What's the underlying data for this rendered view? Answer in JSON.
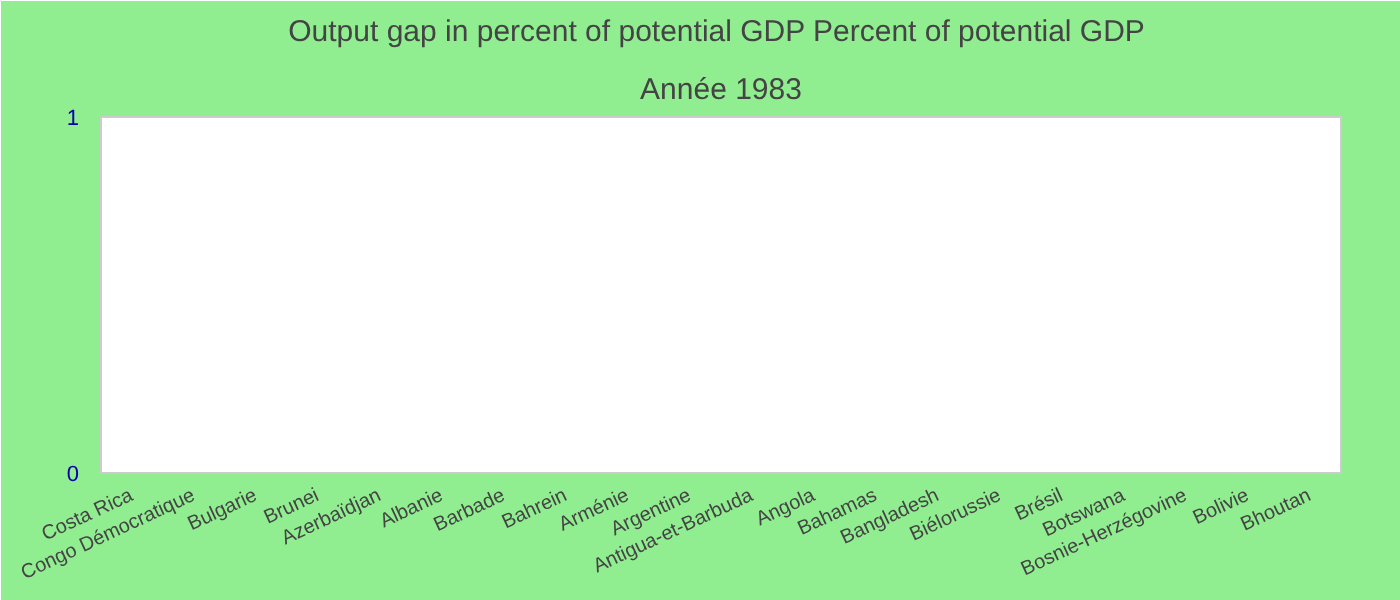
{
  "chart_data": {
    "type": "bar",
    "title": "Output gap in percent of potential GDP  Percent of potential GDP",
    "subtitle": "Année 1983",
    "categories": [
      "Costa Rica",
      "Congo Démocratique",
      "Bulgarie",
      "Brunei",
      "Azerbaïdjan",
      "Albanie",
      "Barbade",
      "Bahrein",
      "Arménie",
      "Argentine",
      "Antigua-et-Barbuda",
      "Angola",
      "Bahamas",
      "Bangladesh",
      "Biélorussie",
      "Brésil",
      "Botswana",
      "Bosnie-Herzégovine",
      "Bolivie",
      "Bhoutan"
    ],
    "values": [
      null,
      null,
      null,
      null,
      null,
      null,
      null,
      null,
      null,
      null,
      null,
      null,
      null,
      null,
      null,
      null,
      null,
      null,
      null,
      null
    ],
    "ylim": [
      0,
      1
    ],
    "yticks": [
      0,
      1
    ]
  }
}
